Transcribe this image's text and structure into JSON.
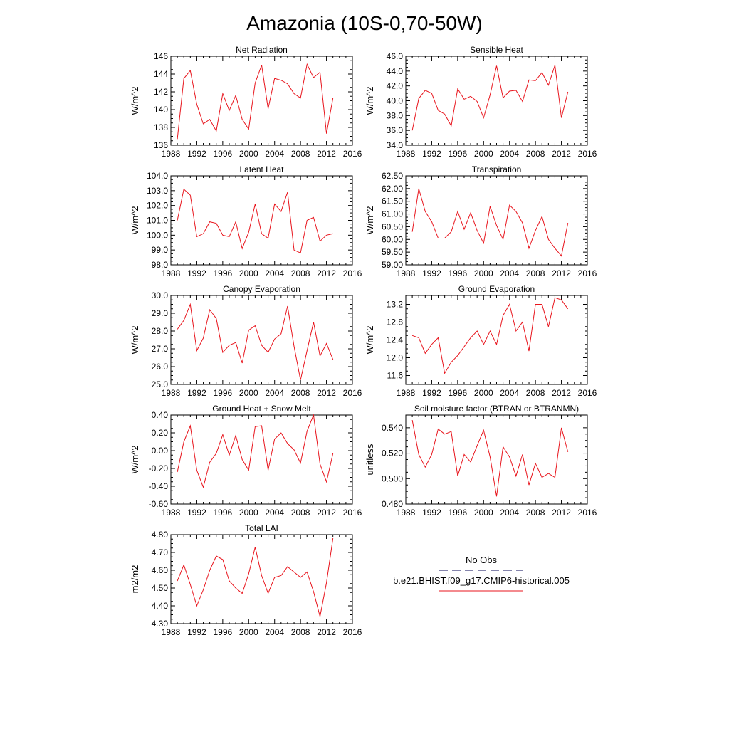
{
  "figure": {
    "title": "Amazonia (10S-0,70-50W)"
  },
  "legend": {
    "obs_label": "No Obs",
    "model_label": "b.e21.BHIST.f09_g17.CMIP6-historical.005",
    "obs_color": "#3a3a7a",
    "model_color": "#e8141c"
  },
  "chart_data": [
    {
      "type": "line",
      "title": "Net Radiation",
      "ylabel": "W/m^2",
      "xlim": [
        1988,
        2016
      ],
      "ylim": [
        136,
        146
      ],
      "xticks": [
        1988,
        1992,
        1996,
        2000,
        2004,
        2008,
        2012,
        2016
      ],
      "yticks": [
        136,
        138,
        140,
        142,
        144,
        146
      ],
      "ytick_labels": [
        "136",
        "138",
        "140",
        "142",
        "144",
        "146"
      ],
      "series": [
        {
          "color": "#e8141c",
          "x": [
            1989,
            1990,
            1991,
            1992,
            1993,
            1994,
            1995,
            1996,
            1997,
            1998,
            1999,
            2000,
            2001,
            2002,
            2003,
            2004,
            2005,
            2006,
            2007,
            2008,
            2009,
            2010,
            2011,
            2012,
            2013
          ],
          "y": [
            136.7,
            143.5,
            144.4,
            140.6,
            138.4,
            138.9,
            137.6,
            141.8,
            139.9,
            141.6,
            138.9,
            137.8,
            143.0,
            145.0,
            140.1,
            143.5,
            143.3,
            142.9,
            141.8,
            141.3,
            145.1,
            143.6,
            144.2,
            137.3,
            141.3
          ]
        }
      ]
    },
    {
      "type": "line",
      "title": "Sensible Heat",
      "ylabel": "W/m^2",
      "xlim": [
        1988,
        2016
      ],
      "ylim": [
        34.0,
        46.0
      ],
      "xticks": [
        1988,
        1992,
        1996,
        2000,
        2004,
        2008,
        2012,
        2016
      ],
      "yticks": [
        34,
        36,
        38,
        40,
        42,
        44,
        46
      ],
      "ytick_labels": [
        "34.0",
        "36.0",
        "38.0",
        "40.0",
        "42.0",
        "44.0",
        "46.0"
      ],
      "series": [
        {
          "color": "#e8141c",
          "x": [
            1989,
            1990,
            1991,
            1992,
            1993,
            1994,
            1995,
            1996,
            1997,
            1998,
            1999,
            2000,
            2001,
            2002,
            2003,
            2004,
            2005,
            2006,
            2007,
            2008,
            2009,
            2010,
            2011,
            2012,
            2013
          ],
          "y": [
            36.0,
            40.3,
            41.4,
            41.0,
            38.7,
            38.2,
            36.6,
            41.6,
            40.2,
            40.6,
            39.9,
            37.7,
            40.8,
            44.7,
            40.4,
            41.3,
            41.4,
            39.9,
            42.8,
            42.7,
            43.8,
            42.1,
            44.8,
            37.7,
            41.2
          ]
        }
      ]
    },
    {
      "type": "line",
      "title": "Latent Heat",
      "ylabel": "W/m^2",
      "xlim": [
        1988,
        2016
      ],
      "ylim": [
        98.0,
        104.0
      ],
      "xticks": [
        1988,
        1992,
        1996,
        2000,
        2004,
        2008,
        2012,
        2016
      ],
      "yticks": [
        98,
        99,
        100,
        101,
        102,
        103,
        104
      ],
      "ytick_labels": [
        "98.0",
        "99.0",
        "100.0",
        "101.0",
        "102.0",
        "103.0",
        "104.0"
      ],
      "series": [
        {
          "color": "#e8141c",
          "x": [
            1989,
            1990,
            1991,
            1992,
            1993,
            1994,
            1995,
            1996,
            1997,
            1998,
            1999,
            2000,
            2001,
            2002,
            2003,
            2004,
            2005,
            2006,
            2007,
            2008,
            2009,
            2010,
            2011,
            2012,
            2013
          ],
          "y": [
            101.0,
            103.1,
            102.7,
            99.9,
            100.1,
            100.9,
            100.8,
            100.0,
            99.9,
            100.9,
            99.1,
            100.2,
            102.1,
            100.1,
            99.8,
            102.1,
            101.6,
            102.9,
            99.0,
            98.8,
            101.0,
            101.2,
            99.6,
            100.0,
            100.1
          ]
        }
      ]
    },
    {
      "type": "line",
      "title": "Transpiration",
      "ylabel": "W/m^2",
      "xlim": [
        1988,
        2016
      ],
      "ylim": [
        59.0,
        62.5
      ],
      "xticks": [
        1988,
        1992,
        1996,
        2000,
        2004,
        2008,
        2012,
        2016
      ],
      "yticks": [
        59.0,
        59.5,
        60.0,
        60.5,
        61.0,
        61.5,
        62.0,
        62.5
      ],
      "ytick_labels": [
        "59.00",
        "59.50",
        "60.00",
        "60.50",
        "61.00",
        "61.50",
        "62.00",
        "62.50"
      ],
      "series": [
        {
          "color": "#e8141c",
          "x": [
            1989,
            1990,
            1991,
            1992,
            1993,
            1994,
            1995,
            1996,
            1997,
            1998,
            1999,
            2000,
            2001,
            2002,
            2003,
            2004,
            2005,
            2006,
            2007,
            2008,
            2009,
            2010,
            2011,
            2012,
            2013
          ],
          "y": [
            60.3,
            62.0,
            61.1,
            60.7,
            60.05,
            60.05,
            60.3,
            61.1,
            60.4,
            61.05,
            60.35,
            59.85,
            61.3,
            60.55,
            60.0,
            61.35,
            61.1,
            60.65,
            59.65,
            60.35,
            60.9,
            60.0,
            59.65,
            59.35,
            60.65
          ]
        }
      ]
    },
    {
      "type": "line",
      "title": "Canopy Evaporation",
      "ylabel": "W/m^2",
      "xlim": [
        1988,
        2016
      ],
      "ylim": [
        25.0,
        30.0
      ],
      "xticks": [
        1988,
        1992,
        1996,
        2000,
        2004,
        2008,
        2012,
        2016
      ],
      "yticks": [
        25,
        26,
        27,
        28,
        29,
        30
      ],
      "ytick_labels": [
        "25.0",
        "26.0",
        "27.0",
        "28.0",
        "29.0",
        "30.0"
      ],
      "series": [
        {
          "color": "#e8141c",
          "x": [
            1989,
            1990,
            1991,
            1992,
            1993,
            1994,
            1995,
            1996,
            1997,
            1998,
            1999,
            2000,
            2001,
            2002,
            2003,
            2004,
            2005,
            2006,
            2007,
            2008,
            2009,
            2010,
            2011,
            2012,
            2013
          ],
          "y": [
            28.1,
            28.6,
            29.5,
            26.9,
            27.6,
            29.2,
            28.7,
            26.8,
            27.2,
            27.35,
            26.2,
            28.05,
            28.3,
            27.2,
            26.8,
            27.55,
            27.85,
            29.4,
            27.15,
            25.25,
            26.9,
            28.5,
            26.6,
            27.3,
            26.4
          ]
        }
      ]
    },
    {
      "type": "line",
      "title": "Ground Evaporation",
      "ylabel": "W/m^2",
      "xlim": [
        1988,
        2016
      ],
      "ylim": [
        11.4,
        13.4
      ],
      "xticks": [
        1988,
        1992,
        1996,
        2000,
        2004,
        2008,
        2012,
        2016
      ],
      "yticks": [
        11.6,
        12.0,
        12.4,
        12.8,
        13.2
      ],
      "ytick_labels": [
        "11.6",
        "12.0",
        "12.4",
        "12.8",
        "13.2"
      ],
      "series": [
        {
          "color": "#e8141c",
          "x": [
            1989,
            1990,
            1991,
            1992,
            1993,
            1994,
            1995,
            1996,
            1997,
            1998,
            1999,
            2000,
            2001,
            2002,
            2003,
            2004,
            2005,
            2006,
            2007,
            2008,
            2009,
            2010,
            2011,
            2012,
            2013
          ],
          "y": [
            12.5,
            12.45,
            12.1,
            12.3,
            12.45,
            11.65,
            11.9,
            12.05,
            12.25,
            12.45,
            12.6,
            12.3,
            12.6,
            12.3,
            12.95,
            13.2,
            12.6,
            12.8,
            12.15,
            13.2,
            13.2,
            12.7,
            13.35,
            13.3,
            13.1
          ]
        }
      ]
    },
    {
      "type": "line",
      "title": "Ground Heat + Snow Melt",
      "ylabel": "W/m^2",
      "xlim": [
        1988,
        2016
      ],
      "ylim": [
        -0.6,
        0.4
      ],
      "xticks": [
        1988,
        1992,
        1996,
        2000,
        2004,
        2008,
        2012,
        2016
      ],
      "yticks": [
        -0.6,
        -0.4,
        -0.2,
        0.0,
        0.2,
        0.4
      ],
      "ytick_labels": [
        "-0.60",
        "-0.40",
        "-0.20",
        "0.00",
        "0.20",
        "0.40"
      ],
      "series": [
        {
          "color": "#e8141c",
          "x": [
            1989,
            1990,
            1991,
            1992,
            1993,
            1994,
            1995,
            1996,
            1997,
            1998,
            1999,
            2000,
            2001,
            2002,
            2003,
            2004,
            2005,
            2006,
            2007,
            2008,
            2009,
            2010,
            2011,
            2012,
            2013
          ],
          "y": [
            -0.24,
            0.1,
            0.28,
            -0.22,
            -0.41,
            -0.13,
            -0.03,
            0.18,
            -0.05,
            0.17,
            -0.1,
            -0.22,
            0.27,
            0.28,
            -0.22,
            0.13,
            0.2,
            0.08,
            0.01,
            -0.14,
            0.22,
            0.4,
            -0.15,
            -0.35,
            -0.03
          ]
        }
      ]
    },
    {
      "type": "line",
      "title": "Soil moisture factor (BTRAN or BTRANMN)",
      "ylabel": "unitless",
      "xlim": [
        1988,
        2016
      ],
      "ylim": [
        0.48,
        0.55
      ],
      "xticks": [
        1988,
        1992,
        1996,
        2000,
        2004,
        2008,
        2012,
        2016
      ],
      "yticks": [
        0.48,
        0.5,
        0.52,
        0.54
      ],
      "ytick_labels": [
        "0.480",
        "0.500",
        "0.520",
        "0.540"
      ],
      "series": [
        {
          "color": "#e8141c",
          "x": [
            1989,
            1990,
            1991,
            1992,
            1993,
            1994,
            1995,
            1996,
            1997,
            1998,
            1999,
            2000,
            2001,
            2002,
            2003,
            2004,
            2005,
            2006,
            2007,
            2008,
            2009,
            2010,
            2011,
            2012,
            2013
          ],
          "y": [
            0.546,
            0.519,
            0.509,
            0.519,
            0.539,
            0.535,
            0.537,
            0.502,
            0.519,
            0.513,
            0.526,
            0.538,
            0.517,
            0.486,
            0.525,
            0.517,
            0.502,
            0.519,
            0.495,
            0.512,
            0.501,
            0.504,
            0.501,
            0.54,
            0.521
          ]
        }
      ]
    },
    {
      "type": "line",
      "title": "Total LAI",
      "ylabel": "m2/m2",
      "xlim": [
        1988,
        2016
      ],
      "ylim": [
        4.3,
        4.8
      ],
      "xticks": [
        1988,
        1992,
        1996,
        2000,
        2004,
        2008,
        2012,
        2016
      ],
      "yticks": [
        4.3,
        4.4,
        4.5,
        4.6,
        4.7,
        4.8
      ],
      "ytick_labels": [
        "4.30",
        "4.40",
        "4.50",
        "4.60",
        "4.70",
        "4.80"
      ],
      "series": [
        {
          "color": "#e8141c",
          "x": [
            1989,
            1990,
            1991,
            1992,
            1993,
            1994,
            1995,
            1996,
            1997,
            1998,
            1999,
            2000,
            2001,
            2002,
            2003,
            2004,
            2005,
            2006,
            2007,
            2008,
            2009,
            2010,
            2011,
            2012,
            2013
          ],
          "y": [
            4.54,
            4.63,
            4.52,
            4.4,
            4.49,
            4.6,
            4.68,
            4.66,
            4.54,
            4.5,
            4.47,
            4.58,
            4.73,
            4.57,
            4.47,
            4.56,
            4.57,
            4.62,
            4.59,
            4.56,
            4.59,
            4.48,
            4.34,
            4.53,
            4.78
          ]
        }
      ]
    }
  ]
}
